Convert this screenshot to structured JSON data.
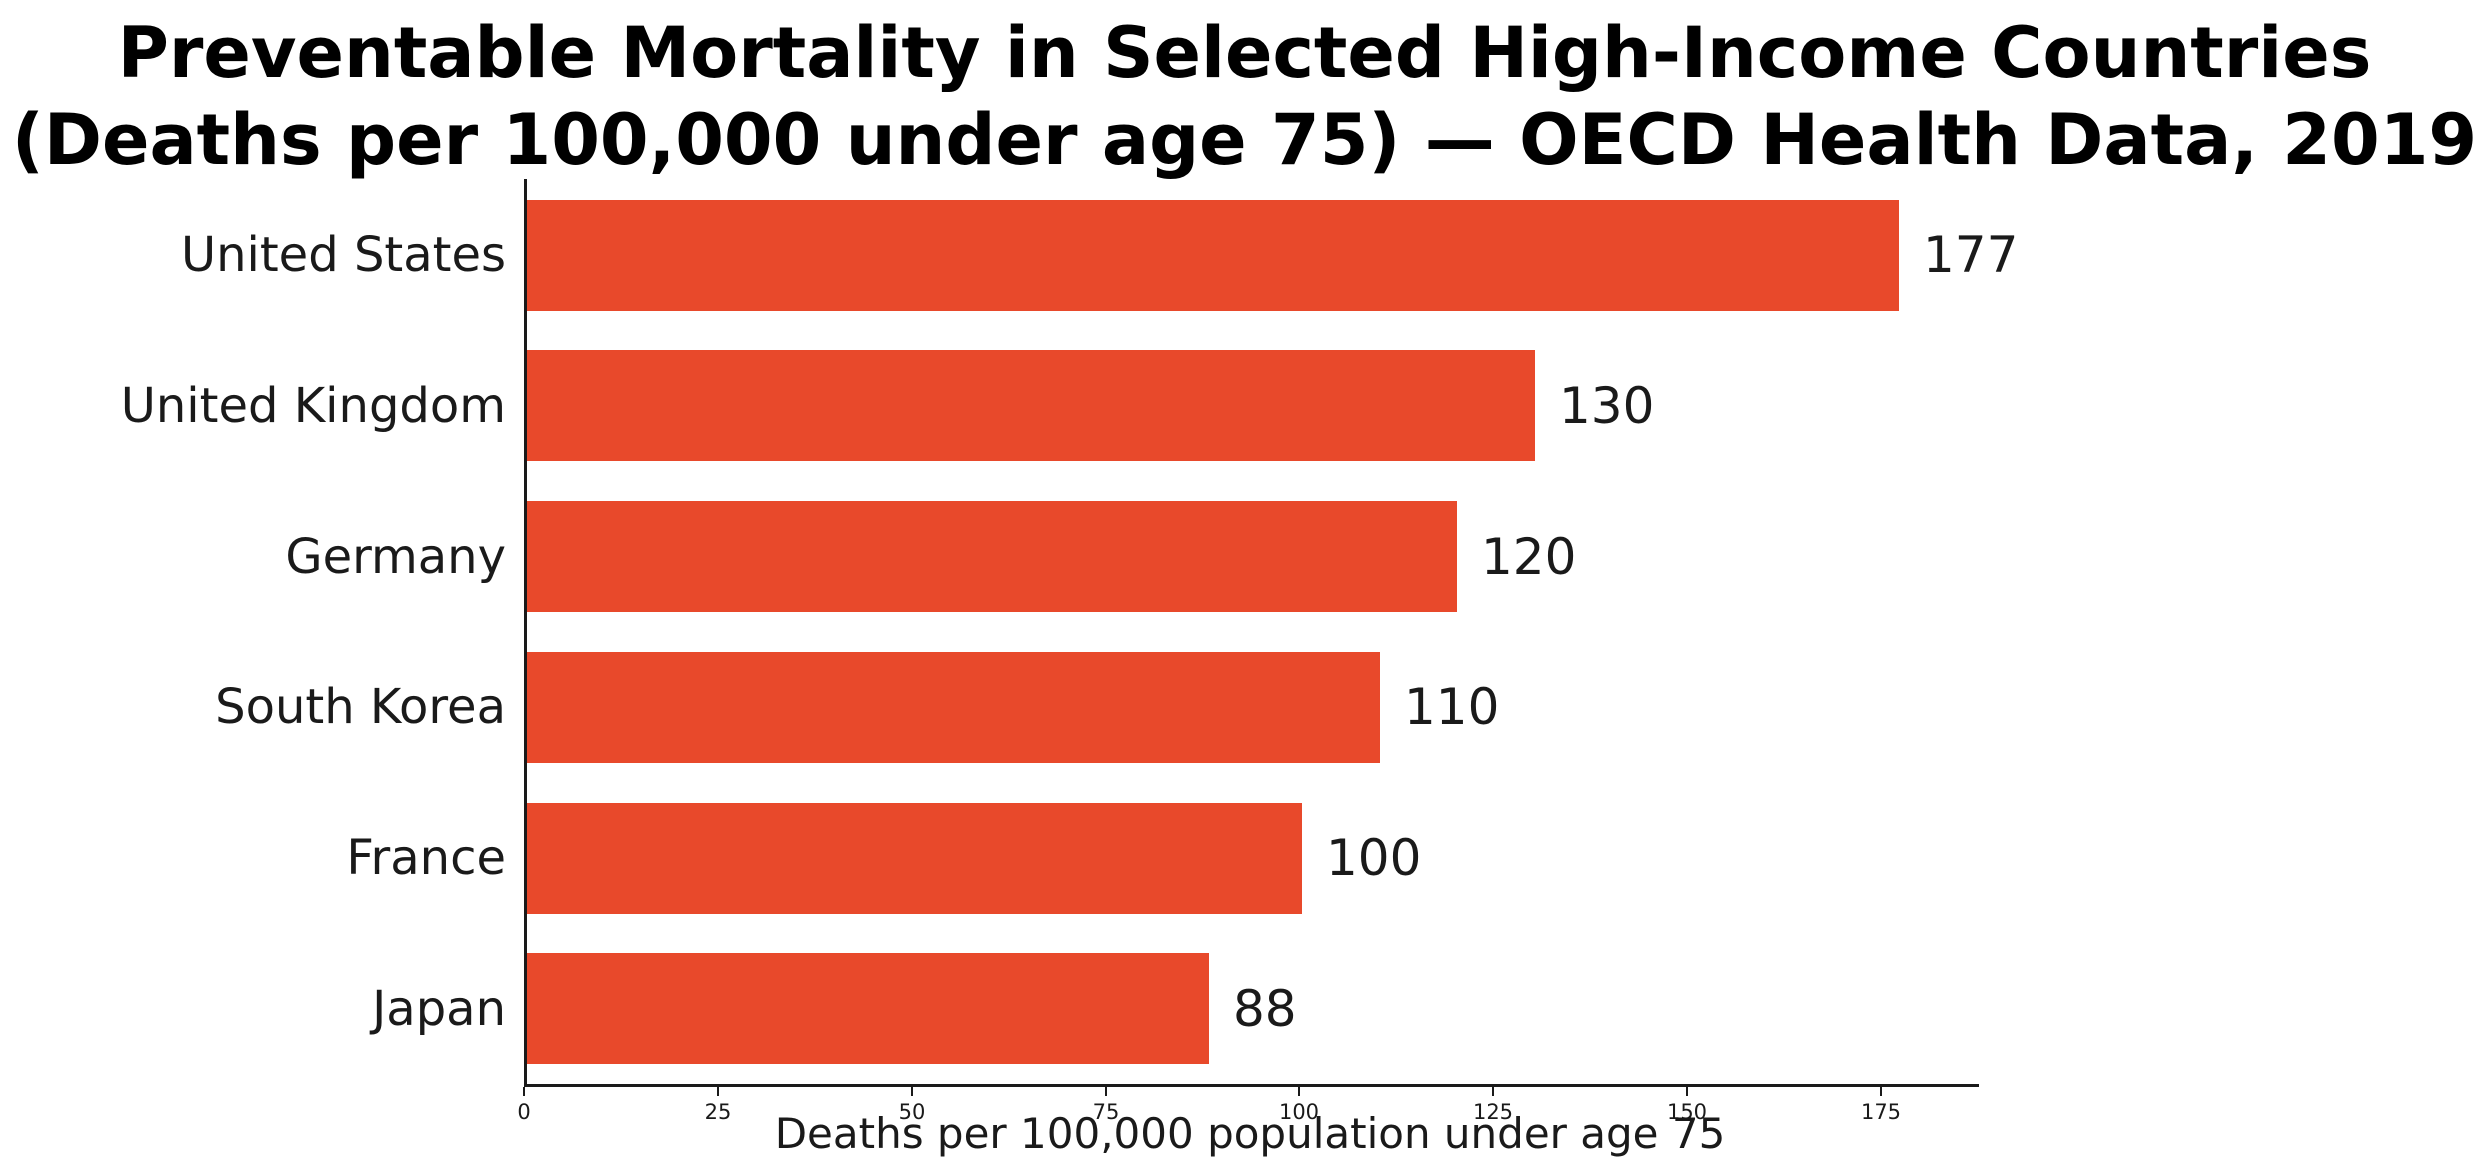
{
  "chart_data": {
    "type": "bar",
    "orientation": "horizontal",
    "title": "Preventable Mortality in Selected High-Income Countries (Deaths per 100,000 under age 75) — OECD Health Data, 2019",
    "title_lines": [
      "Preventable Mortality in Selected High-Income Countries",
      "(Deaths per 100,000 under age 75) — OECD Health Data, 2019"
    ],
    "categories": [
      "United States",
      "United Kingdom",
      "Germany",
      "South Korea",
      "France",
      "Japan"
    ],
    "values": [
      177,
      130,
      120,
      110,
      100,
      88
    ],
    "value_labels": [
      "177",
      "130",
      "120",
      "110",
      "100",
      "88"
    ],
    "xlabel": "Deaths per 100,000 population under age 75",
    "ylabel": "",
    "xlim": [
      0,
      186
    ],
    "x_ticks": [
      0,
      25,
      50,
      75,
      100,
      125,
      150,
      175
    ],
    "grid": false,
    "legend": null,
    "bar_color": "#E8492B",
    "axis_color": "#1a1a1a",
    "background_color": "#ffffff"
  }
}
